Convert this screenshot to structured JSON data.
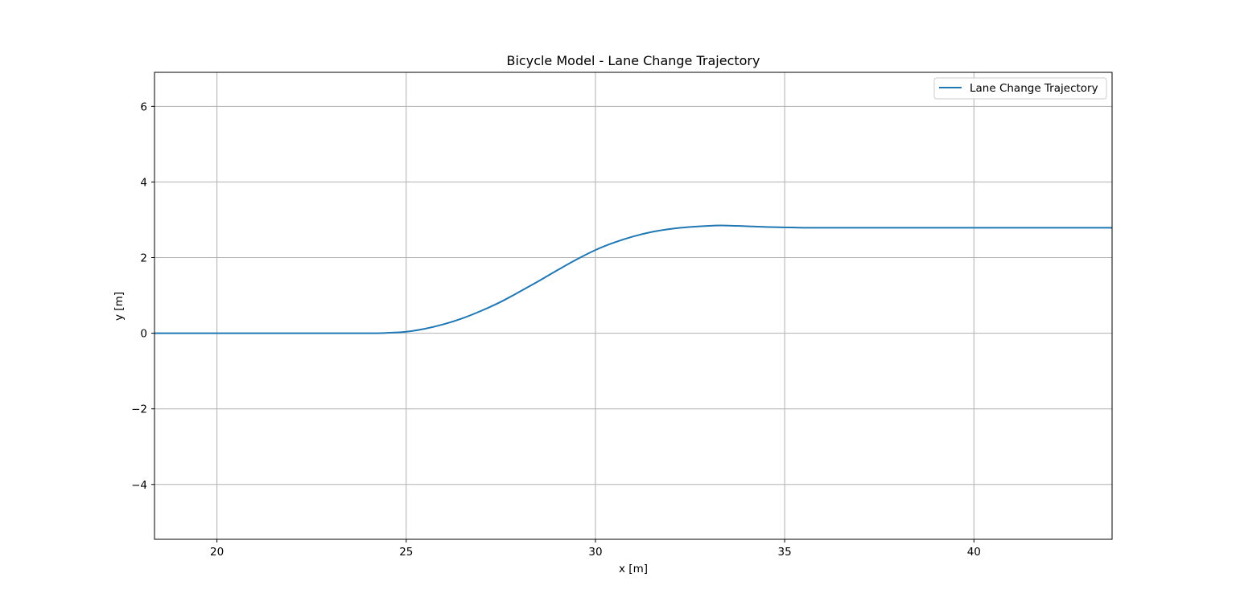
{
  "chart_data": {
    "type": "line",
    "title": "Bicycle Model - Lane Change Trajectory",
    "xlabel": "x [m]",
    "ylabel": "y [m]",
    "xlim": [
      18.35,
      43.65
    ],
    "ylim": [
      -5.45,
      6.9
    ],
    "xticks": [
      20,
      25,
      30,
      35,
      40
    ],
    "yticks": [
      -4,
      -2,
      0,
      2,
      4,
      6
    ],
    "xtick_labels": [
      "20",
      "25",
      "30",
      "35",
      "40"
    ],
    "ytick_labels": [
      "−4",
      "−2",
      "0",
      "2",
      "4",
      "6"
    ],
    "grid": true,
    "legend_position": "top-right",
    "series": [
      {
        "name": "Lane Change Trajectory",
        "color": "#1f77b4",
        "x": [
          18.35,
          20,
          22,
          24,
          24.5,
          25,
          25.5,
          26,
          26.5,
          27,
          27.5,
          28,
          28.5,
          29,
          29.5,
          30,
          30.5,
          31,
          31.5,
          32,
          32.5,
          33,
          33.3,
          33.7,
          34,
          34.5,
          35,
          35.5,
          36,
          38,
          40,
          42,
          43.65
        ],
        "y": [
          0,
          0,
          0,
          0,
          0.01,
          0.04,
          0.12,
          0.24,
          0.4,
          0.6,
          0.83,
          1.1,
          1.38,
          1.67,
          1.95,
          2.2,
          2.4,
          2.56,
          2.68,
          2.76,
          2.81,
          2.84,
          2.85,
          2.84,
          2.83,
          2.81,
          2.8,
          2.79,
          2.79,
          2.79,
          2.79,
          2.79,
          2.79
        ]
      }
    ]
  }
}
